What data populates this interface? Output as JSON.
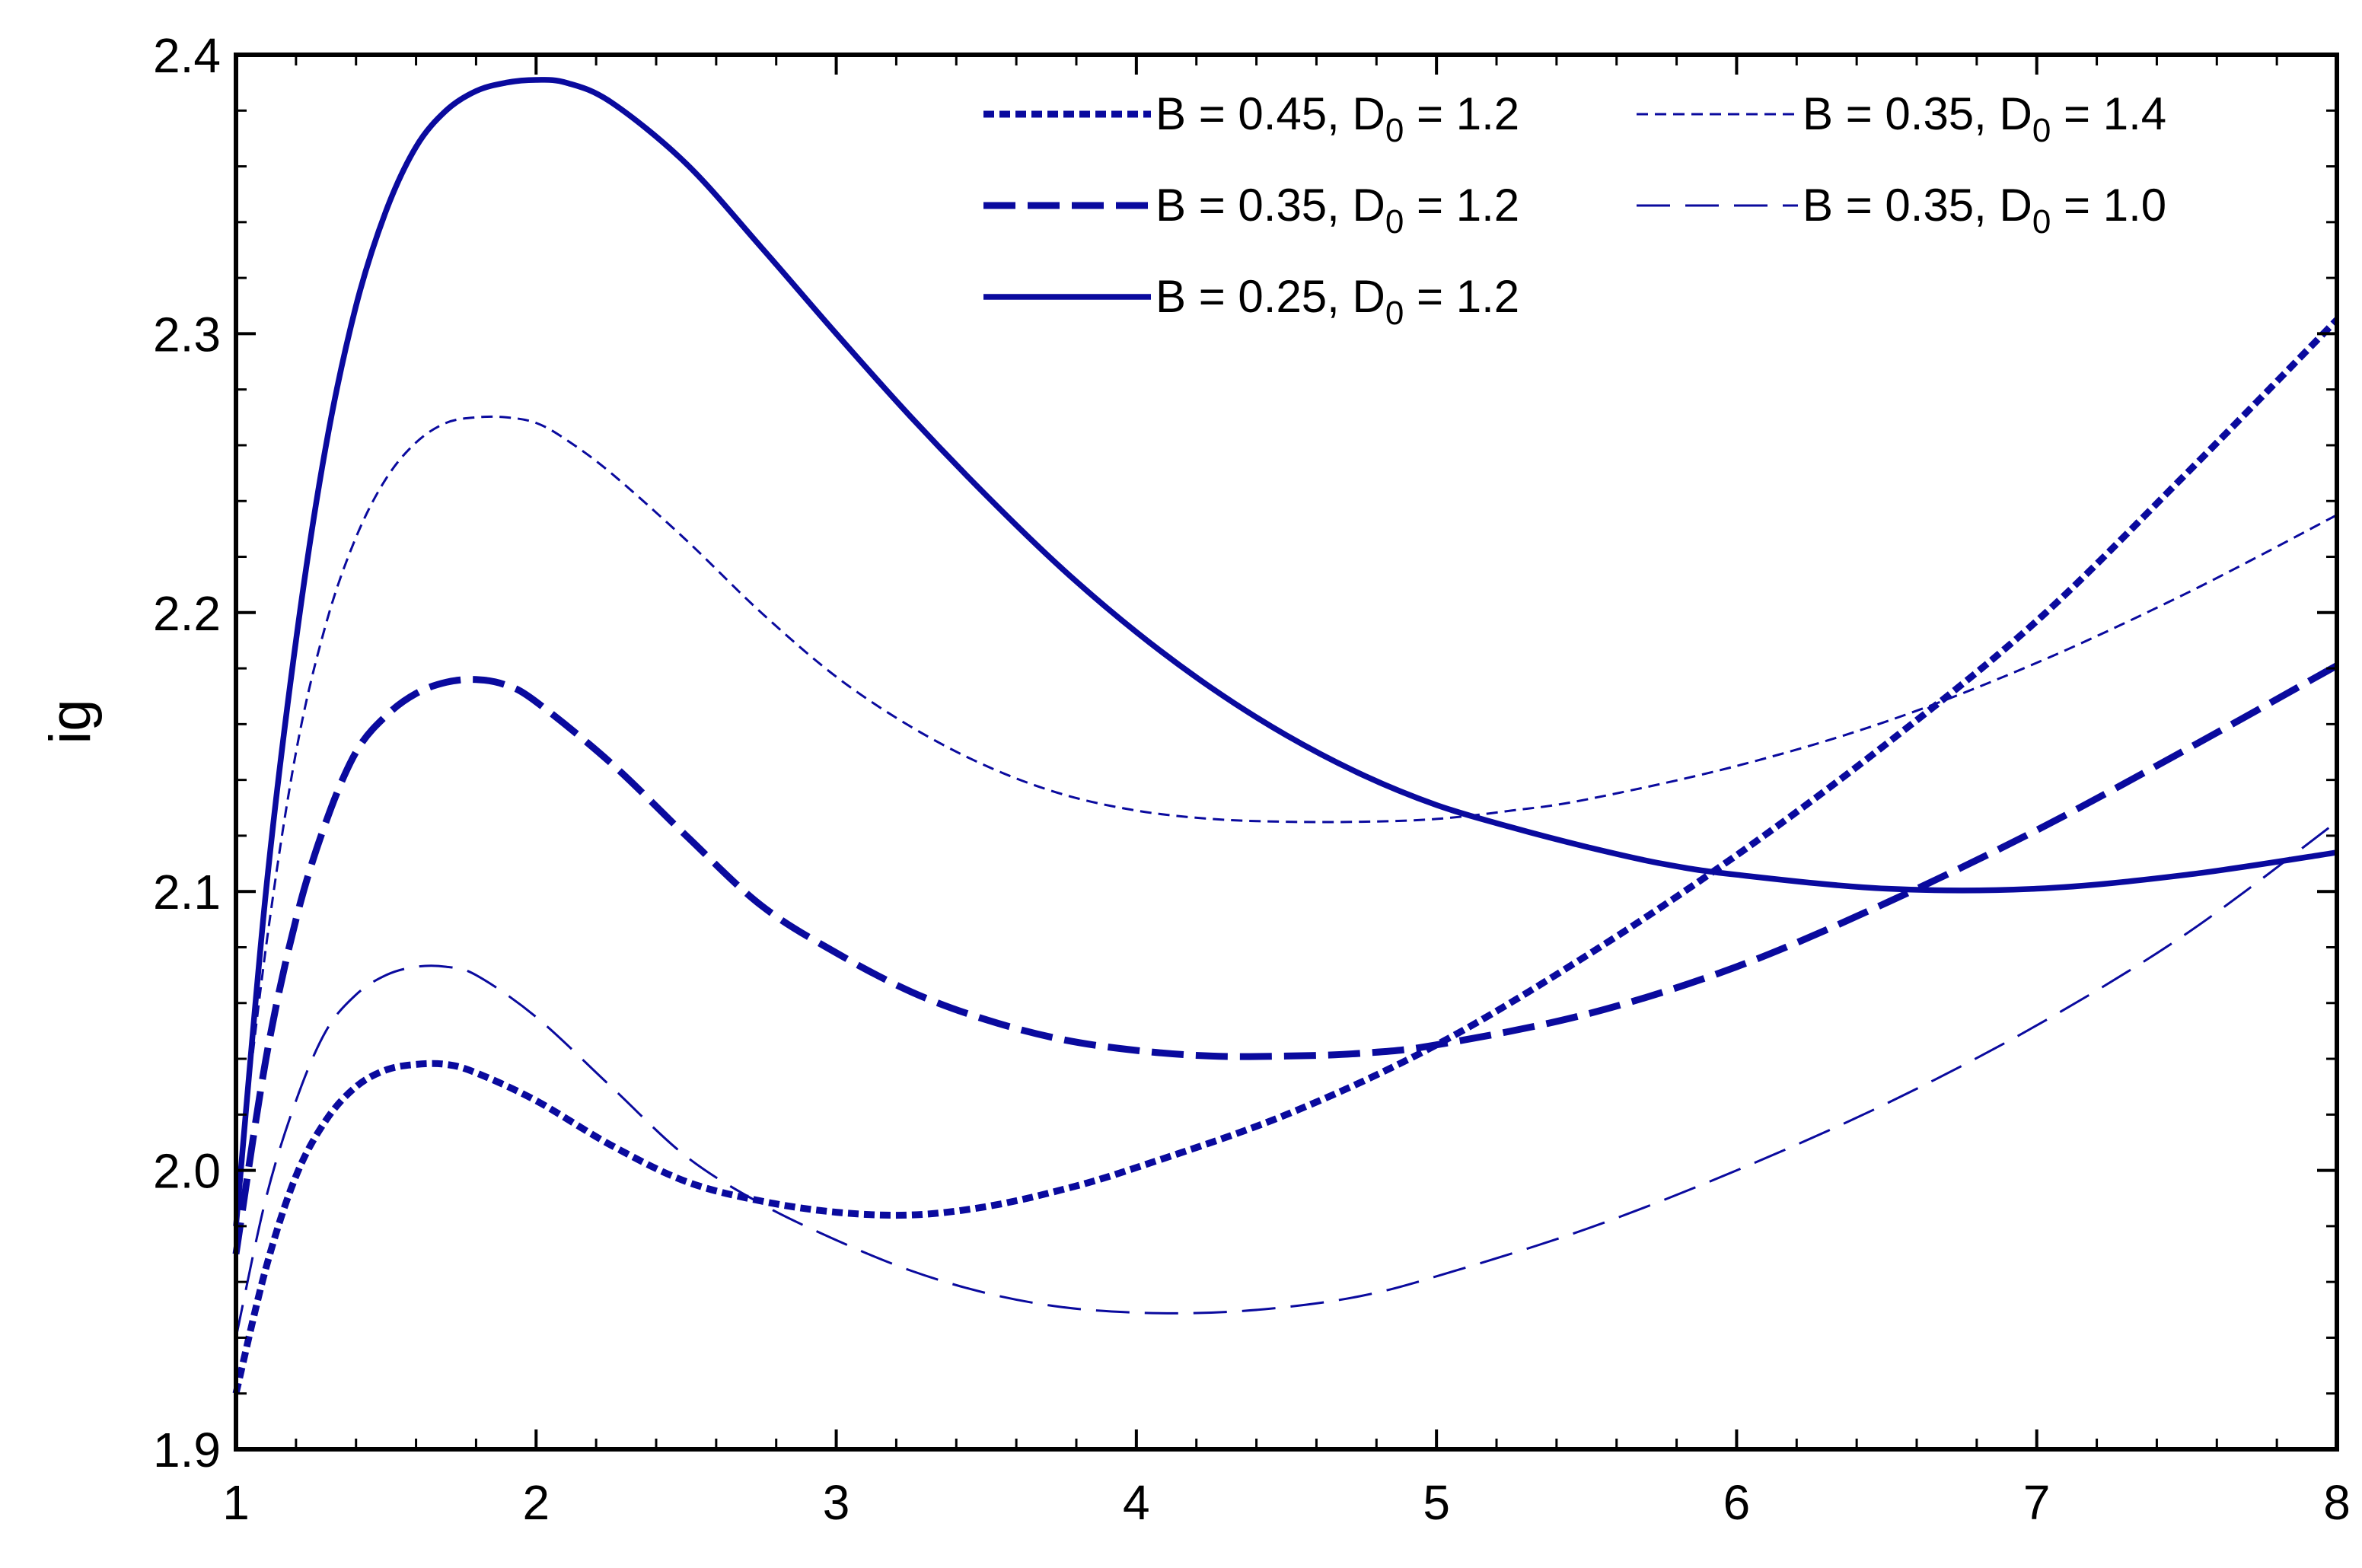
{
  "chart_data": {
    "type": "line",
    "title": "",
    "xlabel": "",
    "ylabel": "ig",
    "xlim": [
      1,
      8
    ],
    "ylim": [
      1.9,
      2.4
    ],
    "xticks": [
      "1",
      "2",
      "3",
      "4",
      "5",
      "6",
      "7",
      "8"
    ],
    "yticks": [
      "1.9",
      "2.0",
      "2.1",
      "2.2",
      "2.3",
      "2.4"
    ],
    "grid": false,
    "legend_position": "top-right",
    "line_color": "#0a0a9e",
    "series": [
      {
        "name": "B = 0.45, D0 = 1.2",
        "label_parts": [
          "B = 0.45, D",
          "0",
          " = 1.2"
        ],
        "style": "dotted-thick",
        "x": [
          1,
          1.1,
          1.2,
          1.3,
          1.4,
          1.5,
          1.6,
          1.7,
          1.8,
          2.0,
          2.25,
          2.5,
          2.75,
          3.0,
          3.25,
          3.5,
          3.75,
          4.0,
          4.5,
          5.0,
          5.5,
          6.0,
          6.5,
          7.0,
          7.5,
          8.0
        ],
        "y": [
          1.92,
          1.965,
          1.998,
          2.018,
          2.03,
          2.036,
          2.038,
          2.038,
          2.035,
          2.025,
          2.009,
          1.996,
          1.989,
          1.985,
          1.984,
          1.987,
          1.993,
          2.001,
          2.02,
          2.045,
          2.077,
          2.113,
          2.153,
          2.197,
          2.25,
          2.305
        ]
      },
      {
        "name": "B = 0.35, D0 = 1.2",
        "label_parts": [
          "B = 0.35, D",
          "0",
          " = 1.2"
        ],
        "style": "dashed-thick",
        "x": [
          1,
          1.1,
          1.2,
          1.3,
          1.4,
          1.5,
          1.6,
          1.7,
          1.8,
          1.9,
          2.0,
          2.25,
          2.5,
          2.75,
          3.0,
          3.25,
          3.5,
          3.75,
          4.0,
          4.25,
          4.5,
          4.75,
          5.0,
          5.5,
          6.0,
          6.5,
          7.0,
          7.5,
          8.0
        ],
        "y": [
          1.97,
          2.04,
          2.09,
          2.125,
          2.15,
          2.163,
          2.171,
          2.175,
          2.176,
          2.174,
          2.168,
          2.146,
          2.12,
          2.095,
          2.078,
          2.064,
          2.054,
          2.047,
          2.043,
          2.041,
          2.041,
          2.042,
          2.045,
          2.056,
          2.073,
          2.096,
          2.122,
          2.151,
          2.181
        ]
      },
      {
        "name": "B = 0.25, D0 = 1.2",
        "label_parts": [
          "B = 0.25, D",
          "0",
          " = 1.2"
        ],
        "style": "solid-thick",
        "x": [
          1,
          1.1,
          1.2,
          1.3,
          1.4,
          1.5,
          1.6,
          1.7,
          1.8,
          1.9,
          2.0,
          2.1,
          2.25,
          2.5,
          2.75,
          3.0,
          3.25,
          3.5,
          3.75,
          4.0,
          4.25,
          4.5,
          4.75,
          5.0,
          5.25,
          5.5,
          5.75,
          6.0,
          6.5,
          7.0,
          7.5,
          8.0
        ],
        "y": [
          1.98,
          2.1,
          2.19,
          2.26,
          2.31,
          2.344,
          2.367,
          2.38,
          2.387,
          2.39,
          2.391,
          2.39,
          2.383,
          2.361,
          2.331,
          2.3,
          2.27,
          2.242,
          2.216,
          2.193,
          2.173,
          2.156,
          2.142,
          2.131,
          2.123,
          2.116,
          2.11,
          2.106,
          2.101,
          2.101,
          2.106,
          2.114
        ]
      },
      {
        "name": "B = 0.35, D0 = 1.4",
        "label_parts": [
          "B = 0.35, D",
          "0",
          " = 1.4"
        ],
        "style": "dashed-thin-short",
        "x": [
          1,
          1.1,
          1.2,
          1.3,
          1.4,
          1.5,
          1.6,
          1.7,
          1.8,
          1.9,
          2.0,
          2.1,
          2.25,
          2.5,
          2.75,
          3.0,
          3.25,
          3.5,
          3.75,
          4.0,
          4.25,
          4.5,
          4.75,
          5.0,
          5.25,
          5.5,
          6.0,
          6.5,
          7.0,
          7.5,
          8.0
        ],
        "y": [
          1.99,
          2.08,
          2.15,
          2.196,
          2.227,
          2.248,
          2.261,
          2.268,
          2.27,
          2.27,
          2.268,
          2.262,
          2.25,
          2.226,
          2.2,
          2.177,
          2.159,
          2.145,
          2.135,
          2.129,
          2.126,
          2.125,
          2.125,
          2.126,
          2.129,
          2.133,
          2.145,
          2.161,
          2.182,
          2.207,
          2.235
        ]
      },
      {
        "name": "B = 0.35, D0 = 1.0",
        "label_parts": [
          "B = 0.35, D",
          "0",
          " = 1.0"
        ],
        "style": "dashed-thin-long",
        "x": [
          1,
          1.1,
          1.2,
          1.3,
          1.4,
          1.5,
          1.6,
          1.7,
          1.8,
          2.0,
          2.25,
          2.5,
          2.75,
          3.0,
          3.25,
          3.5,
          3.75,
          4.0,
          4.25,
          4.5,
          4.75,
          5.0,
          5.5,
          6.0,
          6.5,
          7.0,
          7.5,
          8.0
        ],
        "y": [
          1.94,
          1.99,
          2.025,
          2.05,
          2.063,
          2.07,
          2.073,
          2.073,
          2.07,
          2.055,
          2.03,
          2.005,
          1.988,
          1.975,
          1.964,
          1.956,
          1.951,
          1.949,
          1.949,
          1.951,
          1.955,
          1.962,
          1.979,
          2.0,
          2.024,
          2.052,
          2.085,
          2.125
        ]
      }
    ]
  }
}
